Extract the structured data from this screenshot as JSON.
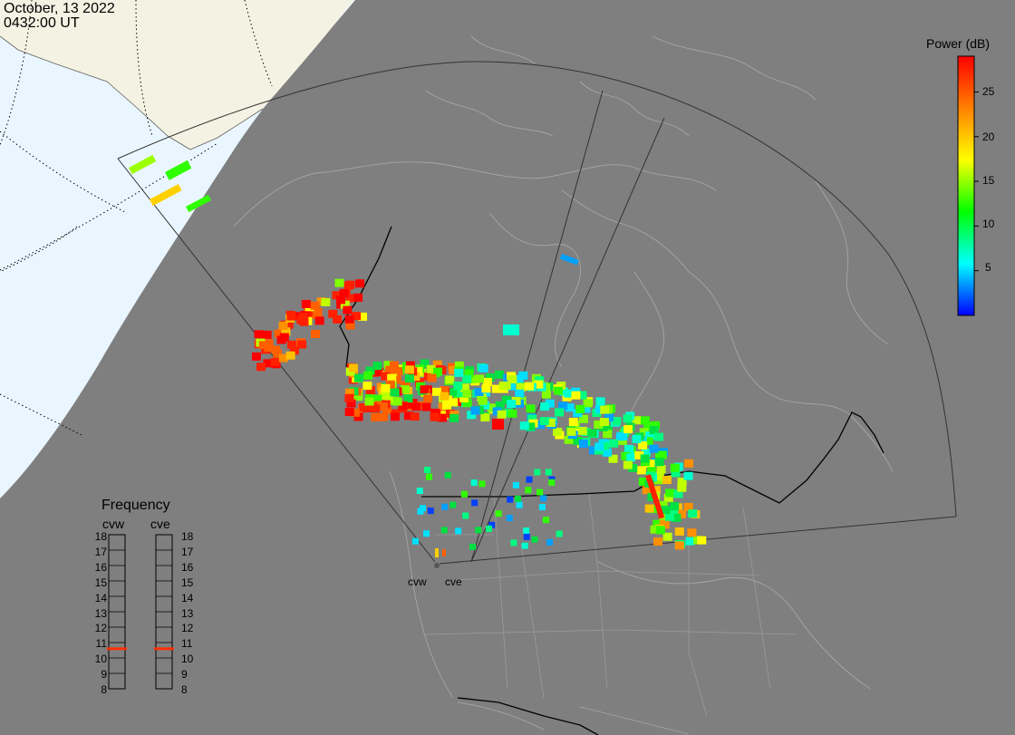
{
  "header": {
    "date": "October, 13 2022",
    "time": "0432:00 UT"
  },
  "colorbar": {
    "title": "Power (dB)",
    "ticks": [
      "25",
      "20",
      "15",
      "10",
      "5"
    ],
    "range": [
      0,
      29
    ],
    "gradient": [
      "#0000ff",
      "#00ffff",
      "#00ff00",
      "#ffff00",
      "#ff8000",
      "#ff0000"
    ]
  },
  "frequency_panel": {
    "title": "Frequency",
    "columns": [
      "cvw",
      "cve"
    ],
    "scale": [
      "18",
      "17",
      "16",
      "15",
      "14",
      "13",
      "12",
      "11",
      "10",
      "9",
      "8"
    ],
    "cvw_mhz": 10.6,
    "cve_mhz": 10.6,
    "marker_color": "#ff3000"
  },
  "radars": {
    "west": "cvw",
    "east": "cve"
  },
  "colors": {
    "night": "#7f7f7f",
    "day_ocean": "#eaf6ff",
    "day_land": "#f4f2e2"
  }
}
